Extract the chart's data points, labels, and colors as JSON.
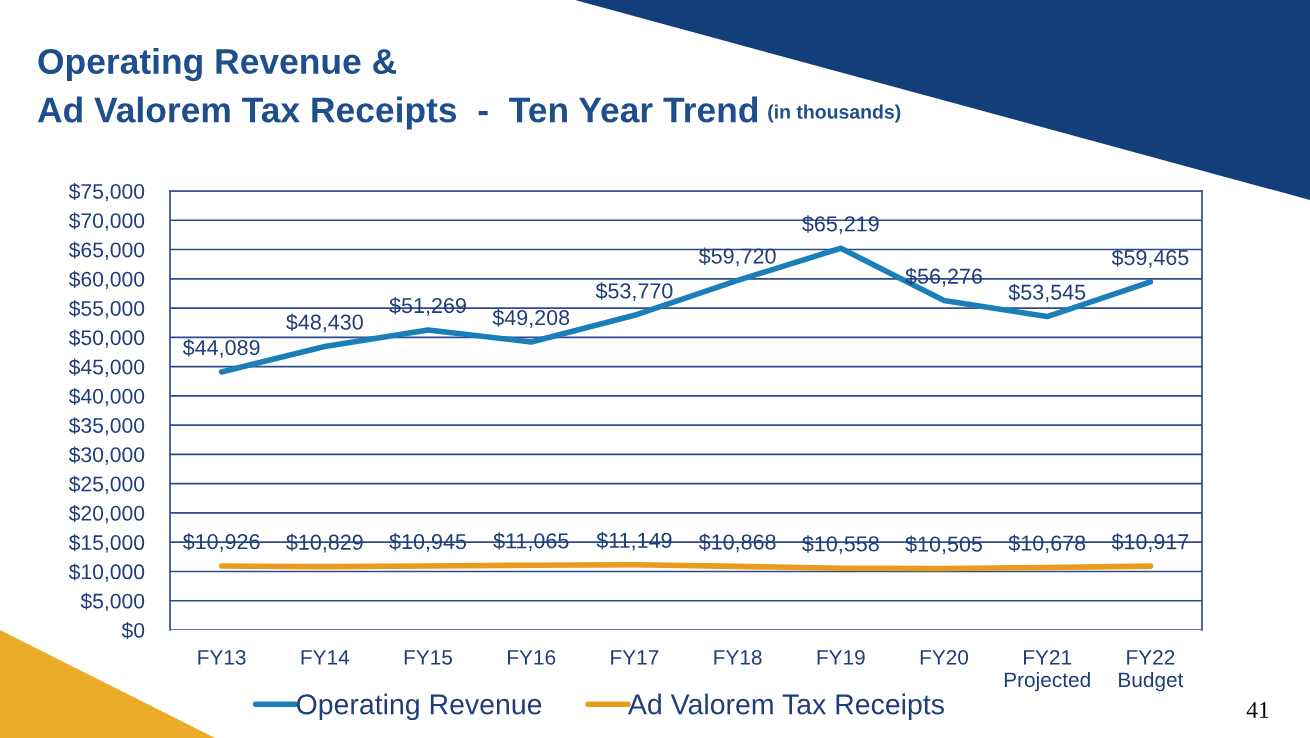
{
  "chart_data": {
    "type": "line",
    "title": "Operating Revenue &\nAd Valorem Tax Receipts  -  Ten Year Trend",
    "subtitle": "(in thousands)",
    "categories": [
      "FY13",
      "FY14",
      "FY15",
      "FY16",
      "FY17",
      "FY18",
      "FY19",
      "FY20",
      "FY21\nProjected",
      "FY22\nBudget"
    ],
    "series": [
      {
        "name": "Operating Revenue",
        "color": "#1a7fb9",
        "values": [
          44089,
          48430,
          51269,
          49208,
          53770,
          59720,
          65219,
          56276,
          53545,
          59465
        ],
        "value_labels": [
          "$44,089",
          "$48,430",
          "$51,269",
          "$49,208",
          "$53,770",
          "$59,720",
          "$65,219",
          "$56,276",
          "$53,545",
          "$59,465"
        ]
      },
      {
        "name": "Ad Valorem Tax Receipts",
        "color": "#e89c1c",
        "values": [
          10926,
          10829,
          10945,
          11065,
          11149,
          10868,
          10558,
          10505,
          10678,
          10917
        ],
        "value_labels": [
          "$10,926",
          "$10,829",
          "$10,945",
          "$11,065",
          "$11,149",
          "$10,868",
          "$10,558",
          "$10,505",
          "$10,678",
          "$10,917"
        ]
      }
    ],
    "ylim": [
      0,
      75000
    ],
    "yticks": [
      {
        "value": 0,
        "label": "$0"
      },
      {
        "value": 5000,
        "label": "$5,000"
      },
      {
        "value": 10000,
        "label": "$10,000"
      },
      {
        "value": 15000,
        "label": "$15,000"
      },
      {
        "value": 20000,
        "label": "$20,000"
      },
      {
        "value": 25000,
        "label": "$25,000"
      },
      {
        "value": 30000,
        "label": "$30,000"
      },
      {
        "value": 35000,
        "label": "$35,000"
      },
      {
        "value": 40000,
        "label": "$40,000"
      },
      {
        "value": 45000,
        "label": "$45,000"
      },
      {
        "value": 50000,
        "label": "$50,000"
      },
      {
        "value": 55000,
        "label": "$55,000"
      },
      {
        "value": 60000,
        "label": "$60,000"
      },
      {
        "value": 65000,
        "label": "$65,000"
      },
      {
        "value": 70000,
        "label": "$70,000"
      },
      {
        "value": 75000,
        "label": "$75,000"
      }
    ],
    "grid": "y",
    "legend": "bottom",
    "marker": "none",
    "line_style": "solid",
    "annotations": [
      "41"
    ]
  }
}
